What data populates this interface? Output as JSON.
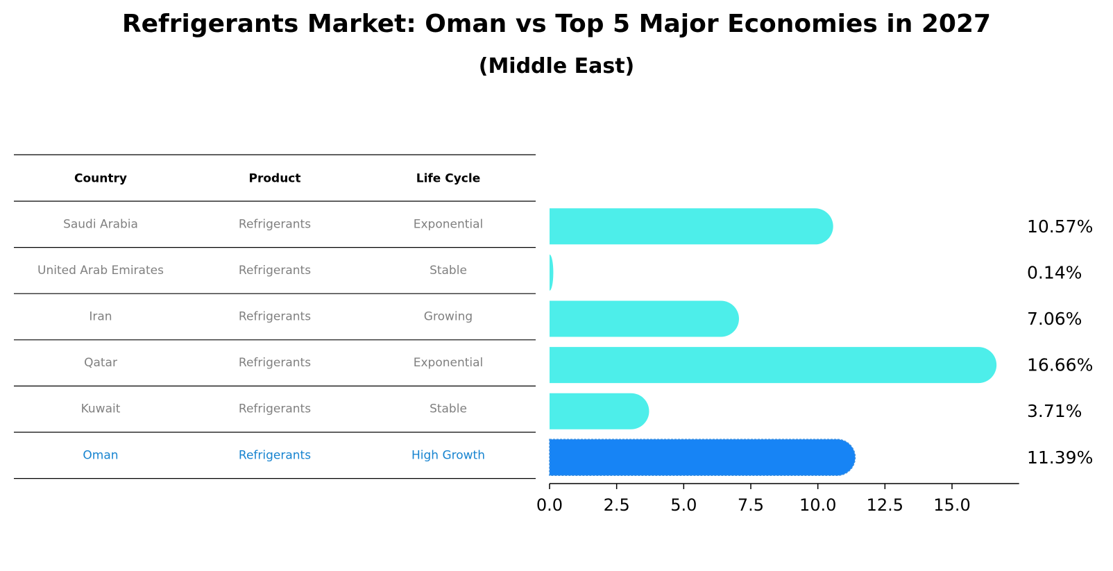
{
  "chart_data": {
    "title": "Refrigerants Market: Oman vs Top 5 Major Economies in 2027",
    "subtitle": "(Middle East)",
    "type": "bar",
    "orientation": "horizontal",
    "table": {
      "columns": [
        "Country",
        "Product",
        "Life Cycle"
      ],
      "rows": [
        [
          "Saudi Arabia",
          "Refrigerants",
          "Exponential"
        ],
        [
          "United Arab Emirates",
          "Refrigerants",
          "Stable"
        ],
        [
          "Iran",
          "Refrigerants",
          "Growing"
        ],
        [
          "Qatar",
          "Refrigerants",
          "Exponential"
        ],
        [
          "Kuwait",
          "Refrigerants",
          "Stable"
        ],
        [
          "Oman",
          "Refrigerants",
          "High Growth"
        ]
      ],
      "highlight_row": 5
    },
    "categories": [
      "Saudi Arabia",
      "United Arab Emirates",
      "Iran",
      "Qatar",
      "Kuwait",
      "Oman"
    ],
    "values": [
      10.57,
      0.14,
      7.06,
      16.66,
      3.71,
      11.39
    ],
    "value_labels": [
      "10.57%",
      "0.14%",
      "7.06%",
      "16.66%",
      "3.71%",
      "11.39%"
    ],
    "highlight_index": 5,
    "xlim": [
      0,
      17.5
    ],
    "xticks": [
      0.0,
      2.5,
      5.0,
      7.5,
      10.0,
      12.5,
      15.0
    ],
    "xtick_labels": [
      "0.0",
      "2.5",
      "5.0",
      "7.5",
      "10.0",
      "12.5",
      "15.0"
    ],
    "colors": {
      "bar": "#4DEEEA",
      "highlight_bar": "#1784F5",
      "highlight_text": "#1784D0",
      "table_text": "#808080"
    }
  }
}
